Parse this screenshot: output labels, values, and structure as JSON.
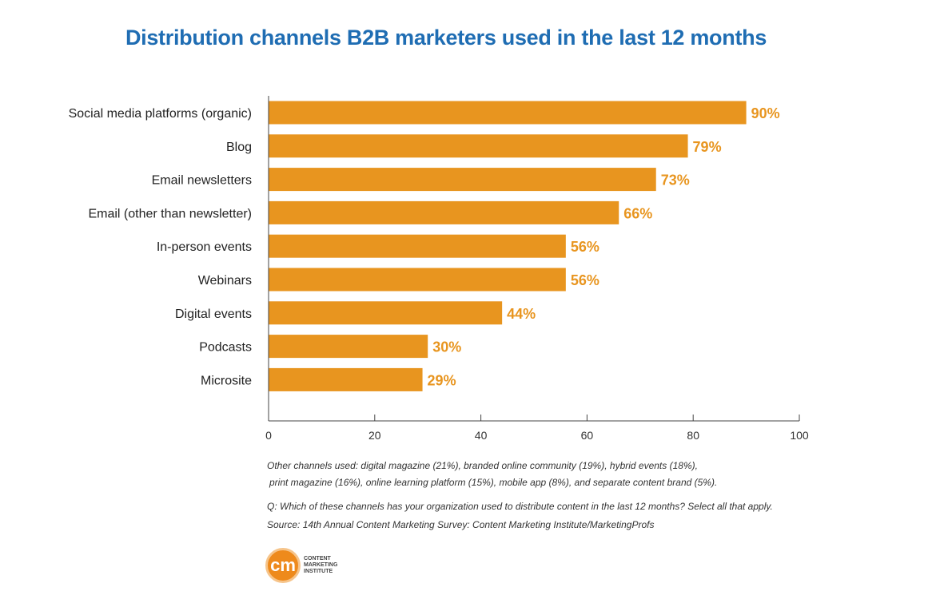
{
  "chart_data": {
    "type": "bar",
    "orientation": "horizontal",
    "title": "Distribution channels B2B marketers used in the last 12 months",
    "categories": [
      "Social media platforms (organic)",
      "Blog",
      "Email newsletters",
      "Email (other than newsletter)",
      "In-person events",
      "Webinars",
      "Digital events",
      "Podcasts",
      "Microsite"
    ],
    "values": [
      90,
      79,
      73,
      66,
      56,
      56,
      44,
      30,
      29
    ],
    "data_labels": [
      "90%",
      "79%",
      "73%",
      "66%",
      "56%",
      "56%",
      "44%",
      "30%",
      "29%"
    ],
    "xlim": [
      0,
      100
    ],
    "xticks": [
      "0",
      "20",
      "40",
      "60",
      "80",
      "100"
    ],
    "grid": false,
    "bar_color": "#e8951f",
    "title_color": "#1f6db3"
  },
  "notes": {
    "other_line1": "Other channels used: digital magazine (21%), branded online community (19%), hybrid events (18%),",
    "other_line2": "print magazine (16%), online learning platform (15%), mobile app (8%), and separate content brand (5%).",
    "question": "Q: Which of these channels has your organization used to distribute content in the last 12 months? Select all that apply.",
    "source": "Source: 14th Annual Content Marketing Survey: Content Marketing Institute/MarketingProfs"
  },
  "logo": {
    "mark": "cm",
    "text": "CONTENT MARKETING INSTITUTE"
  }
}
